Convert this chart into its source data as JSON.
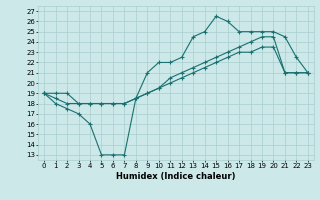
{
  "xlabel": "Humidex (Indice chaleur)",
  "bg_color": "#cce8e8",
  "grid_color": "#aacece",
  "line_color": "#1a7070",
  "xlim": [
    -0.5,
    23.5
  ],
  "ylim": [
    12.5,
    27.5
  ],
  "xticks": [
    0,
    1,
    2,
    3,
    4,
    5,
    6,
    7,
    8,
    9,
    10,
    11,
    12,
    13,
    14,
    15,
    16,
    17,
    18,
    19,
    20,
    21,
    22,
    23
  ],
  "yticks": [
    13,
    14,
    15,
    16,
    17,
    18,
    19,
    20,
    21,
    22,
    23,
    24,
    25,
    26,
    27
  ],
  "line1_x": [
    0,
    1,
    2,
    3,
    4,
    5,
    6,
    7,
    8,
    9,
    10,
    11,
    12,
    13,
    14,
    15,
    16,
    17,
    18,
    19,
    20,
    21,
    22,
    23
  ],
  "line1_y": [
    19,
    18,
    17.5,
    17,
    16,
    13,
    13,
    13,
    18.5,
    21,
    22,
    22,
    22.5,
    24.5,
    25,
    26.5,
    26,
    25,
    25,
    25,
    25,
    24.5,
    22.5,
    21
  ],
  "line2_x": [
    0,
    1,
    2,
    3,
    4,
    5,
    6,
    7,
    8,
    9,
    10,
    11,
    12,
    13,
    14,
    15,
    16,
    17,
    18,
    19,
    20,
    21,
    22,
    23
  ],
  "line2_y": [
    19,
    18.5,
    18,
    18,
    18,
    18,
    18,
    18,
    18.5,
    19,
    19.5,
    20,
    20.5,
    21,
    21.5,
    22,
    22.5,
    23,
    23,
    23.5,
    23.5,
    21,
    21,
    21
  ],
  "line3_x": [
    0,
    1,
    2,
    3,
    4,
    5,
    6,
    7,
    8,
    9,
    10,
    11,
    12,
    13,
    14,
    15,
    16,
    17,
    18,
    19,
    20,
    21,
    22,
    23
  ],
  "line3_y": [
    19,
    19,
    19,
    18,
    18,
    18,
    18,
    18,
    18.5,
    19,
    19.5,
    20.5,
    21,
    21.5,
    22,
    22.5,
    23,
    23.5,
    24,
    24.5,
    24.5,
    21,
    21,
    21
  ]
}
